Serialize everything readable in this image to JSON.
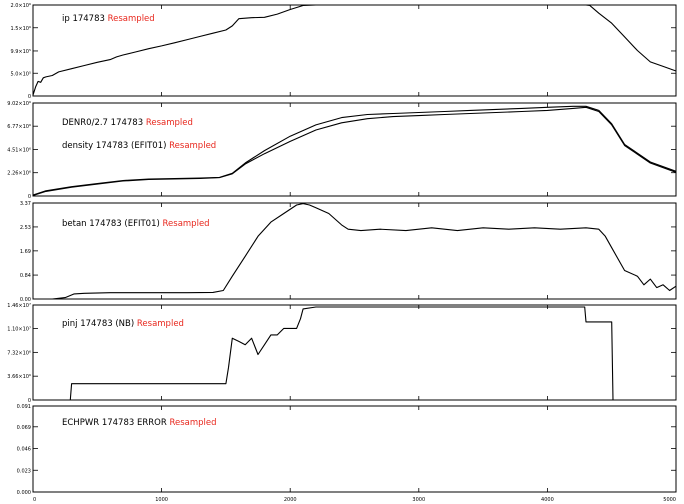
{
  "colors": {
    "line": "#000000",
    "resampled": "#e8281e",
    "frame": "#000000",
    "background": "#ffffff"
  },
  "x_axis": {
    "min": 0,
    "max": 5000,
    "ticks": [
      0,
      1000,
      2000,
      3000,
      4000,
      5000
    ],
    "tick_labels": [
      "0",
      "1000",
      "2000",
      "3000",
      "4000",
      "5000"
    ]
  },
  "chart_data": [
    {
      "type": "line",
      "ylim": [
        0,
        2000000
      ],
      "yticks": [
        0,
        500000,
        990000,
        1500000,
        2000000
      ],
      "ytick_labels": [
        "0",
        "5.0×10⁵",
        "9.9×10⁵",
        "1.5×10⁶",
        "2.0×10⁶"
      ],
      "labels": [
        {
          "text": "ip  174783",
          "tag": "Resampled"
        }
      ],
      "series": [
        {
          "x": [
            0,
            20,
            40,
            60,
            80,
            100,
            150,
            200,
            300,
            400,
            500,
            600,
            650,
            700,
            800,
            900,
            1000,
            1100,
            1200,
            1300,
            1400,
            1500,
            1550,
            1600,
            1700,
            1800,
            1900,
            2000,
            2100,
            2200,
            2500,
            3000,
            3500,
            4000,
            4300,
            4330,
            4350,
            4400,
            4500,
            4600,
            4700,
            4800,
            4900,
            5000
          ],
          "y": [
            20000,
            200000,
            320000,
            300000,
            400000,
            420000,
            450000,
            530000,
            600000,
            670000,
            740000,
            800000,
            860000,
            900000,
            970000,
            1040000,
            1100000,
            1170000,
            1240000,
            1310000,
            1380000,
            1450000,
            1540000,
            1700000,
            1720000,
            1730000,
            1800000,
            1900000,
            1990000,
            2000000,
            2000000,
            2000000,
            2000000,
            2000000,
            2000000,
            1990000,
            1940000,
            1820000,
            1600000,
            1300000,
            1000000,
            750000,
            650000,
            550000
          ]
        }
      ]
    },
    {
      "type": "line",
      "ylim": [
        0,
        9020000
      ],
      "yticks": [
        0,
        2260000,
        4510000,
        6770000,
        9020000
      ],
      "ytick_labels": [
        "0",
        "2.26×10⁶",
        "4.51×10⁶",
        "6.77×10⁶",
        "9.02×10⁶"
      ],
      "labels": [
        {
          "text": "DENR0/2.7  174783",
          "tag": "Resampled"
        },
        {
          "text": "density  174783 (EFIT01)",
          "tag": "Resampled"
        }
      ],
      "series": [
        {
          "x": [
            0,
            100,
            300,
            500,
            700,
            900,
            1100,
            1300,
            1450,
            1550,
            1650,
            1800,
            2000,
            2200,
            2400,
            2600,
            2800,
            3000,
            3200,
            3400,
            3600,
            3800,
            4000,
            4200,
            4300,
            4400,
            4500,
            4600,
            4800,
            5000
          ],
          "y": [
            100000,
            500000,
            900000,
            1200000,
            1500000,
            1650000,
            1700000,
            1750000,
            1800000,
            2200000,
            3200000,
            4400000,
            5800000,
            6900000,
            7600000,
            7900000,
            8000000,
            8100000,
            8200000,
            8300000,
            8400000,
            8500000,
            8600000,
            8700000,
            8700000,
            8300000,
            7000000,
            5000000,
            3300000,
            2400000
          ]
        },
        {
          "x": [
            0,
            100,
            300,
            500,
            700,
            900,
            1100,
            1300,
            1450,
            1550,
            1650,
            1800,
            2000,
            2200,
            2400,
            2600,
            2800,
            3000,
            3200,
            3400,
            3600,
            3800,
            4000,
            4200,
            4300,
            4400,
            4500,
            4600,
            4800,
            5000
          ],
          "y": [
            50000,
            450000,
            850000,
            1150000,
            1450000,
            1600000,
            1650000,
            1700000,
            1780000,
            2150000,
            3100000,
            4100000,
            5300000,
            6400000,
            7100000,
            7500000,
            7700000,
            7800000,
            7900000,
            8000000,
            8100000,
            8200000,
            8300000,
            8500000,
            8600000,
            8200000,
            6900000,
            4900000,
            3200000,
            2300000
          ]
        }
      ]
    },
    {
      "type": "line",
      "ylim": [
        0,
        3.37
      ],
      "yticks": [
        0,
        0.84,
        1.69,
        2.53,
        3.37
      ],
      "ytick_labels": [
        "0.00",
        "0.84",
        "1.69",
        "2.53",
        "3.37"
      ],
      "labels": [
        {
          "text": "betan  174783 (EFIT01)",
          "tag": "Resampled"
        }
      ],
      "series": [
        {
          "x": [
            0,
            150,
            250,
            320,
            400,
            600,
            800,
            1000,
            1200,
            1400,
            1480,
            1550,
            1650,
            1750,
            1850,
            1950,
            2050,
            2100,
            2150,
            2200,
            2300,
            2400,
            2450,
            2550,
            2700,
            2900,
            3100,
            3300,
            3500,
            3700,
            3900,
            4100,
            4300,
            4400,
            4450,
            4500,
            4600,
            4700,
            4750,
            4800,
            4850,
            4900,
            4950,
            5000
          ],
          "y": [
            0,
            0,
            0.05,
            0.18,
            0.2,
            0.22,
            0.22,
            0.22,
            0.22,
            0.23,
            0.3,
            0.8,
            1.5,
            2.2,
            2.7,
            3.0,
            3.3,
            3.35,
            3.3,
            3.2,
            3.0,
            2.6,
            2.45,
            2.4,
            2.45,
            2.4,
            2.5,
            2.4,
            2.5,
            2.45,
            2.5,
            2.45,
            2.5,
            2.45,
            2.2,
            1.8,
            1.0,
            0.8,
            0.5,
            0.7,
            0.4,
            0.5,
            0.3,
            0.45
          ]
        }
      ]
    },
    {
      "type": "line",
      "ylim": [
        0,
        14600000
      ],
      "yticks": [
        0,
        3660000,
        7320000,
        11000000,
        14600000
      ],
      "ytick_labels": [
        "0",
        "3.66×10⁶",
        "7.32×10⁶",
        "1.10×10⁷",
        "1.46×10⁷"
      ],
      "labels": [
        {
          "text": "pinj  174783 (NB)",
          "tag": "Resampled"
        }
      ],
      "series": [
        {
          "x": [
            0,
            290,
            300,
            1500,
            1520,
            1550,
            1600,
            1650,
            1700,
            1750,
            1800,
            1850,
            1900,
            1950,
            2000,
            2050,
            2080,
            2100,
            2200,
            3000,
            4000,
            4290,
            4300,
            4500,
            4510,
            5000
          ],
          "y": [
            0,
            0,
            2500000,
            2500000,
            5000000,
            9500000,
            9000000,
            8500000,
            9500000,
            7000000,
            8500000,
            10000000,
            10000000,
            11000000,
            11000000,
            11000000,
            12500000,
            14000000,
            14300000,
            14300000,
            14300000,
            14300000,
            12000000,
            12000000,
            0,
            0
          ]
        }
      ]
    },
    {
      "type": "line",
      "ylim": [
        0,
        0.091
      ],
      "yticks": [
        0,
        0.023,
        0.046,
        0.069,
        0.091
      ],
      "ytick_labels": [
        "0.000",
        "0.023",
        "0.046",
        "0.069",
        "0.091"
      ],
      "labels": [
        {
          "text": "ECHPWR  174783 ERROR",
          "tag": "Resampled"
        }
      ],
      "series": []
    }
  ]
}
